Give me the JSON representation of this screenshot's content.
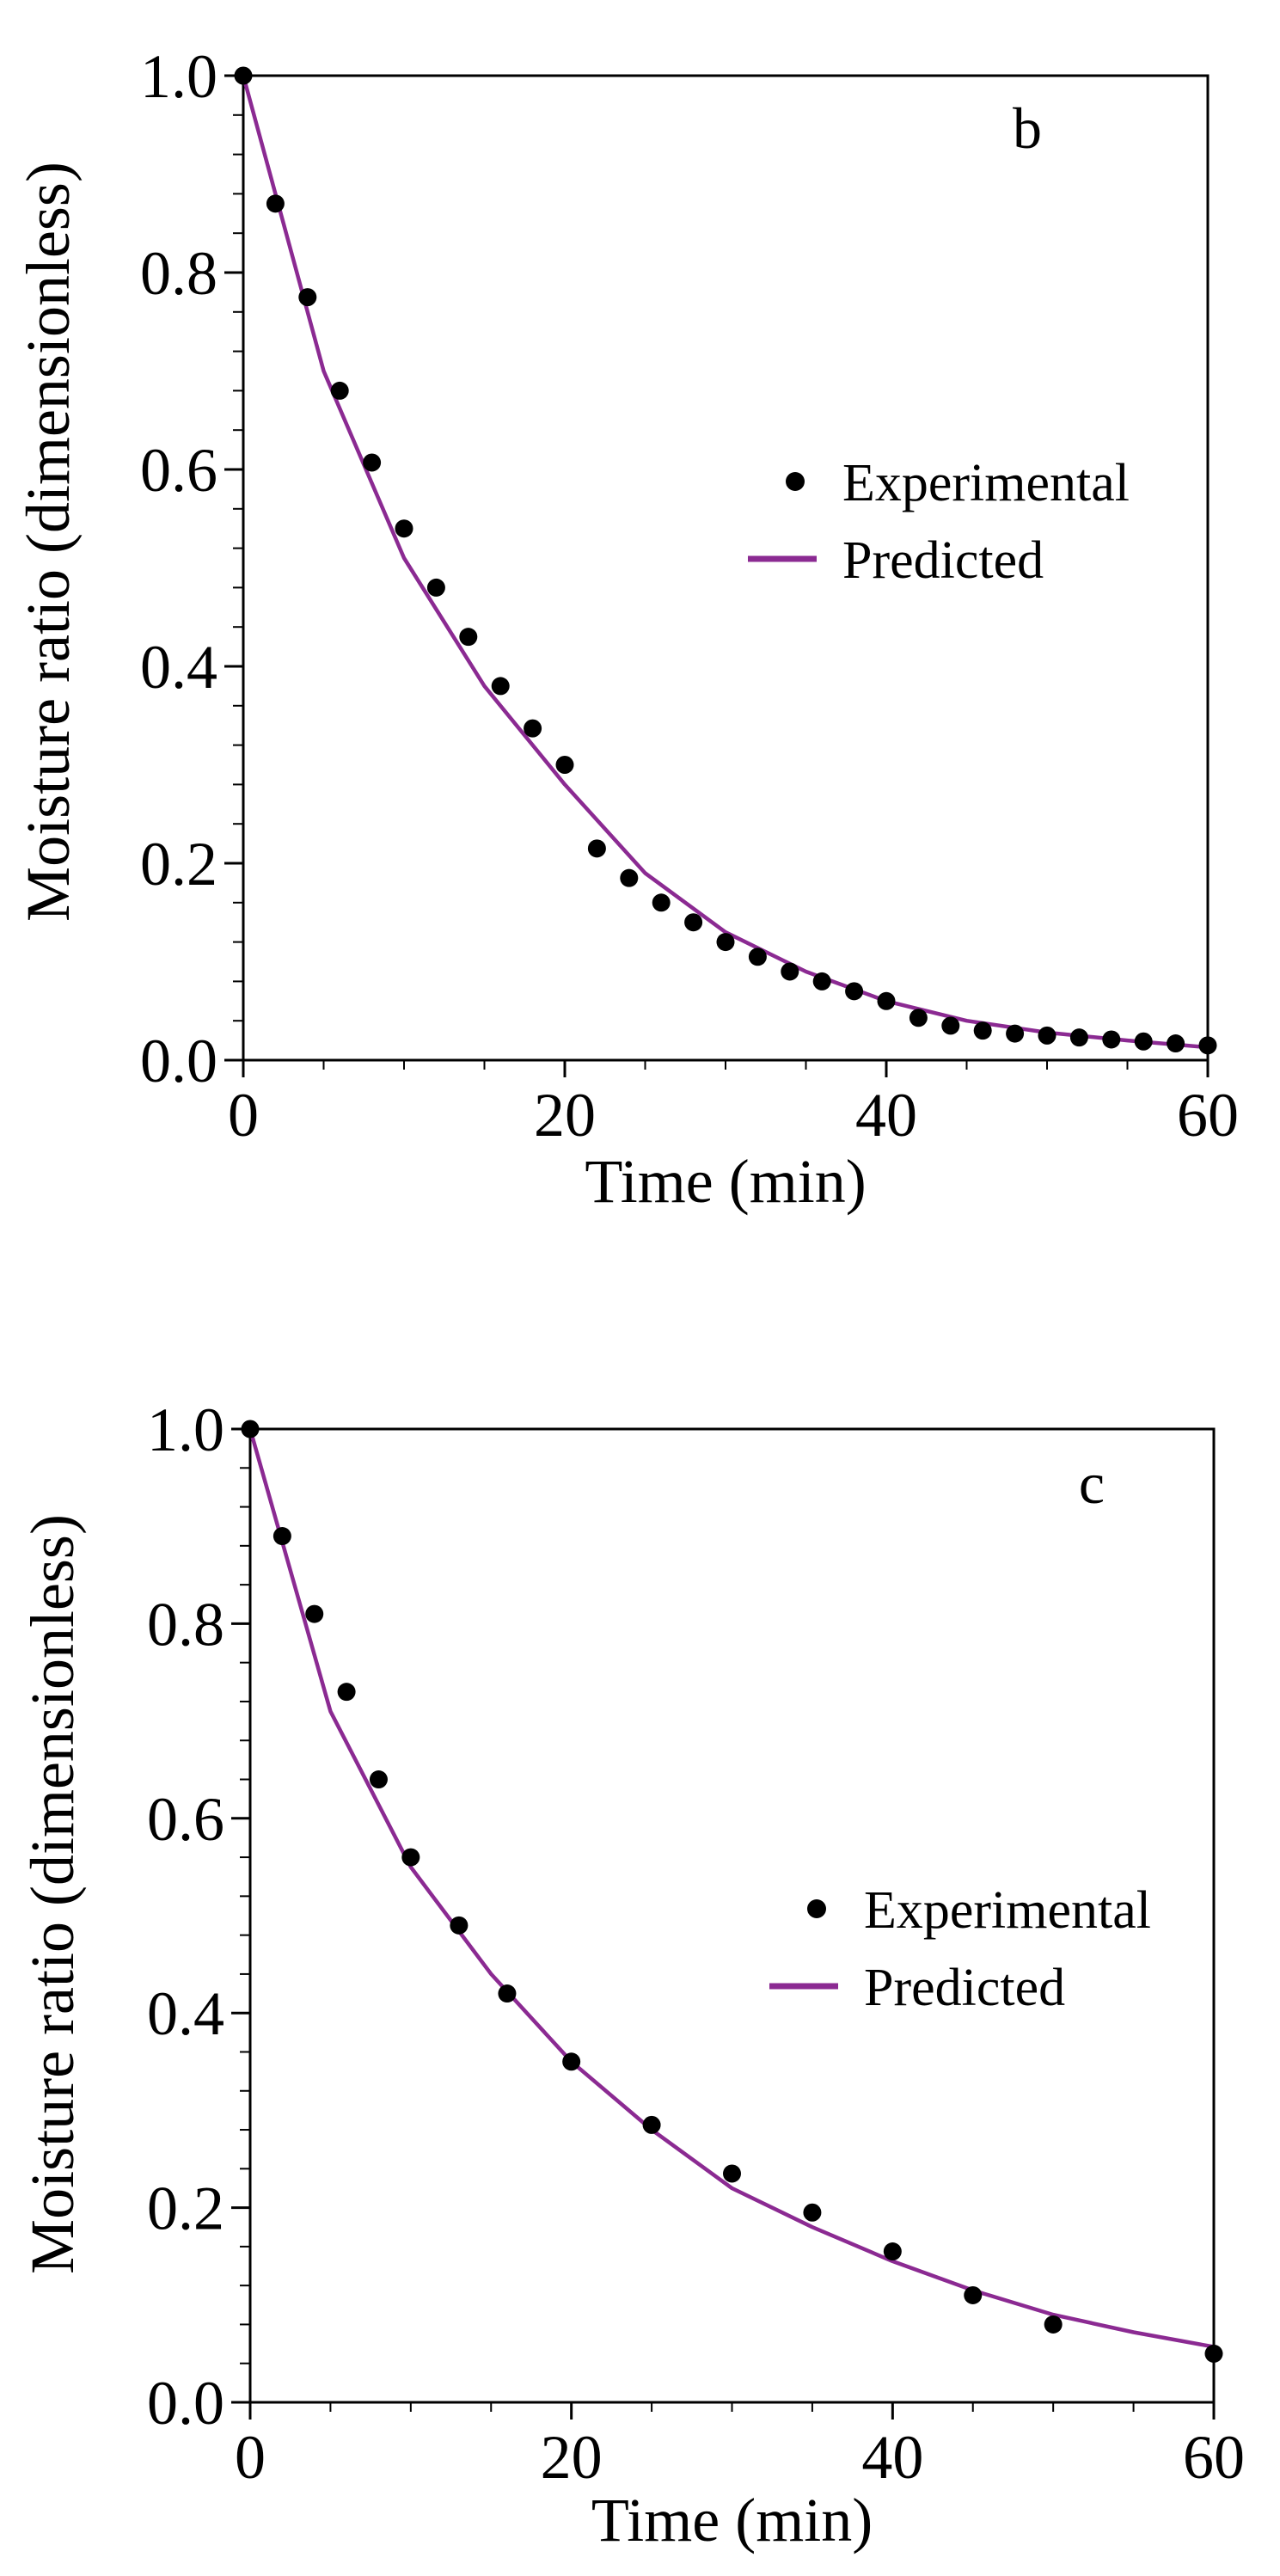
{
  "colors": {
    "predicted": "#8B2A92",
    "experimental": "#000000",
    "axis": "#000000",
    "background": "#ffffff"
  },
  "chart_data": [
    {
      "type": "scatter",
      "panel_label": "b",
      "xlabel": "Time (min)",
      "ylabel": "Moisture ratio (dimensionless)",
      "xlim": [
        0,
        60
      ],
      "ylim": [
        0,
        1.0
      ],
      "x_ticks": [
        "0",
        "20",
        "40",
        "60"
      ],
      "y_ticks": [
        "0.0",
        "0.2",
        "0.4",
        "0.6",
        "0.8",
        "1.0"
      ],
      "legend": {
        "position": "center-right",
        "experimental_label": "Experimental",
        "predicted_label": "Predicted"
      },
      "series": [
        {
          "name": "Experimental",
          "kind": "points",
          "x": [
            0,
            2,
            4,
            6,
            8,
            10,
            12,
            14,
            16,
            18,
            20,
            22,
            24,
            26,
            28,
            30,
            32,
            34,
            36,
            38,
            40,
            42,
            44,
            46,
            48,
            50,
            52,
            54,
            56,
            58,
            60
          ],
          "y": [
            1.0,
            0.87,
            0.775,
            0.68,
            0.607,
            0.54,
            0.48,
            0.43,
            0.38,
            0.337,
            0.3,
            0.215,
            0.185,
            0.16,
            0.14,
            0.12,
            0.105,
            0.09,
            0.08,
            0.07,
            0.06,
            0.043,
            0.035,
            0.03,
            0.027,
            0.025,
            0.023,
            0.021,
            0.019,
            0.017,
            0.015
          ]
        },
        {
          "name": "Predicted",
          "kind": "line",
          "x": [
            0,
            5,
            10,
            15,
            20,
            25,
            30,
            35,
            40,
            45,
            50,
            55,
            60
          ],
          "y": [
            1.0,
            0.7,
            0.51,
            0.38,
            0.28,
            0.19,
            0.13,
            0.09,
            0.06,
            0.04,
            0.028,
            0.02,
            0.013
          ]
        }
      ]
    },
    {
      "type": "scatter",
      "panel_label": "c",
      "xlabel": "Time (min)",
      "ylabel": "Moisture ratio (dimensionless)",
      "xlim": [
        0,
        60
      ],
      "ylim": [
        0,
        1.0
      ],
      "x_ticks": [
        "0",
        "20",
        "40",
        "60"
      ],
      "y_ticks": [
        "0.0",
        "0.2",
        "0.4",
        "0.6",
        "0.8",
        "1.0"
      ],
      "legend": {
        "position": "center-right",
        "experimental_label": "Experimental",
        "predicted_label": "Predicted"
      },
      "series": [
        {
          "name": "Experimental",
          "kind": "points",
          "x": [
            0,
            2,
            4,
            6,
            8,
            10,
            13,
            16,
            20,
            25,
            30,
            35,
            40,
            45,
            50,
            60
          ],
          "y": [
            1.0,
            0.89,
            0.81,
            0.73,
            0.64,
            0.56,
            0.49,
            0.42,
            0.35,
            0.285,
            0.235,
            0.195,
            0.155,
            0.11,
            0.08,
            0.05
          ]
        },
        {
          "name": "Predicted",
          "kind": "line",
          "x": [
            0,
            5,
            10,
            15,
            20,
            25,
            30,
            35,
            40,
            45,
            50,
            55,
            60
          ],
          "y": [
            1.0,
            0.71,
            0.55,
            0.44,
            0.35,
            0.28,
            0.22,
            0.18,
            0.145,
            0.115,
            0.09,
            0.072,
            0.057
          ]
        }
      ]
    }
  ]
}
